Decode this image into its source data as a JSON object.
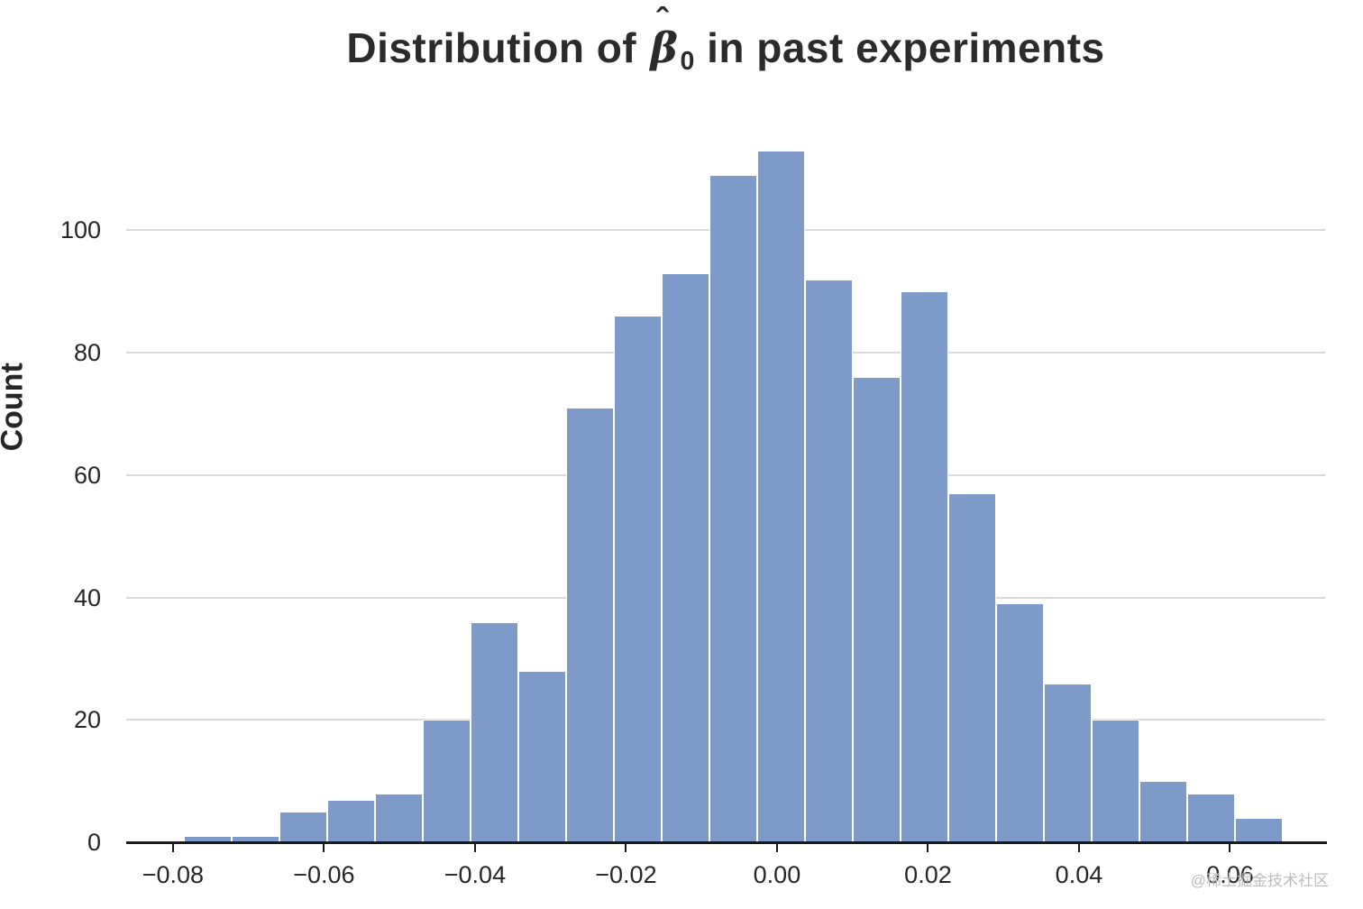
{
  "title": {
    "prefix": "Distribution of ",
    "hat": "ˆ",
    "symbol": "β",
    "subscript": "0",
    "suffix": " in past experiments"
  },
  "watermark": "@稀土掘金技术社区",
  "chart_data": {
    "type": "bar",
    "subtype": "histogram",
    "title": "Distribution of beta-hat-0 in past experiments",
    "xlabel": "",
    "ylabel": "Count",
    "bar_color": "#7d9ac8",
    "bar_edge_color": "#ffffff",
    "grid_color": "#d9d9d9",
    "grid": true,
    "legend": false,
    "bin_start": -0.0786,
    "bin_width": 0.00633,
    "values": [
      1,
      1,
      5,
      7,
      8,
      20,
      36,
      28,
      71,
      86,
      93,
      109,
      113,
      92,
      76,
      90,
      57,
      39,
      26,
      20,
      10,
      8,
      4
    ],
    "xlim": [
      -0.0862,
      0.0726
    ],
    "ylim": [
      0,
      117
    ],
    "xticks": [
      {
        "value": -0.08,
        "label": "−0.08"
      },
      {
        "value": -0.06,
        "label": "−0.06"
      },
      {
        "value": -0.04,
        "label": "−0.04"
      },
      {
        "value": -0.02,
        "label": "−0.02"
      },
      {
        "value": 0.0,
        "label": "0.00"
      },
      {
        "value": 0.02,
        "label": "0.02"
      },
      {
        "value": 0.04,
        "label": "0.04"
      },
      {
        "value": 0.06,
        "label": "0.06"
      }
    ],
    "yticks": [
      {
        "value": 0,
        "label": "0"
      },
      {
        "value": 20,
        "label": "20"
      },
      {
        "value": 40,
        "label": "40"
      },
      {
        "value": 60,
        "label": "60"
      },
      {
        "value": 80,
        "label": "80"
      },
      {
        "value": 100,
        "label": "100"
      }
    ]
  }
}
